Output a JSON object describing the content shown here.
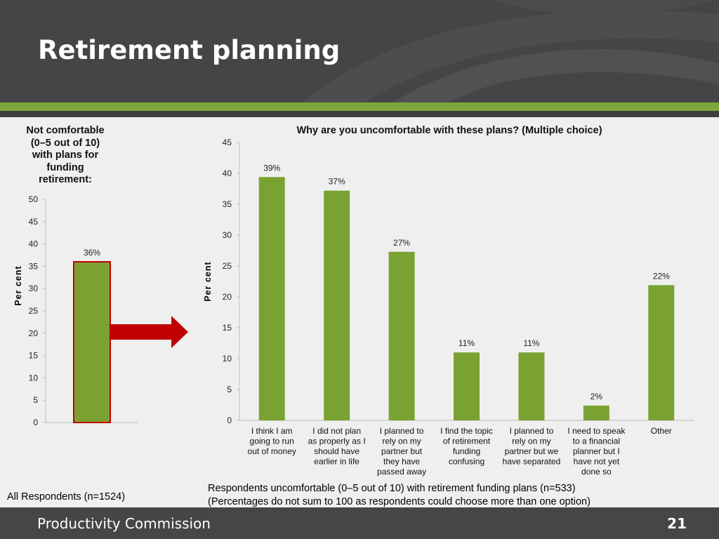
{
  "slide": {
    "title": "Retirement planning",
    "footer_org": "Productivity Commission",
    "page_number": "21"
  },
  "colors": {
    "bar": "#7aa232",
    "bar_highlight_border": "#c00000",
    "arrow": "#c00000",
    "header_bg": "#444546",
    "accent_band": "#7ea63a"
  },
  "notes": {
    "left": "All Respondents (n=1524)",
    "right_line1": "Respondents uncomfortable (0–5 out of 10) with retirement funding plans (n=533)",
    "right_line2": "(Percentages do not sum to 100 as respondents could choose more than one option)"
  },
  "chart_data": [
    {
      "type": "bar",
      "title": "Not comfortable (0–5 out of 10) with plans for funding retirement:",
      "ylabel": "Per cent",
      "xlabel": "",
      "ylim": [
        0,
        50
      ],
      "yticks": [
        "0",
        "5",
        "10",
        "15",
        "20",
        "25",
        "30",
        "35",
        "40",
        "45",
        "50"
      ],
      "categories": [
        ""
      ],
      "values": [
        36
      ],
      "data_labels": [
        "36%"
      ],
      "highlight": true,
      "grid": false
    },
    {
      "type": "bar",
      "title": "Why are you uncomfortable with these plans? (Multiple choice)",
      "ylabel": "Per cent",
      "xlabel": "",
      "ylim": [
        0,
        45
      ],
      "yticks": [
        "0",
        "5",
        "10",
        "15",
        "20",
        "25",
        "30",
        "35",
        "40",
        "45"
      ],
      "categories": [
        "I think I am going to run out of money",
        "I did not plan as properly as I should have earlier in life",
        "I planned to rely on my partner but they have passed away",
        "I find the topic of retirement funding confusing",
        "I planned to rely on my partner but we have separated",
        "I need to speak to a financial planner but I have not yet done so",
        "Other"
      ],
      "category_lines": [
        [
          "I think I am",
          "going to run",
          "out of money"
        ],
        [
          "I did not plan",
          "as properly as I",
          "should have",
          "earlier in life"
        ],
        [
          "I planned to",
          "rely on my",
          "partner but",
          "they have",
          "passed away"
        ],
        [
          "I find the topic",
          "of retirement",
          "funding",
          "confusing"
        ],
        [
          "I planned to",
          "rely on my",
          "partner but we",
          "have separated"
        ],
        [
          "I need to speak",
          "to a financial",
          "planner but I",
          "have not yet",
          "done so"
        ],
        [
          "Other"
        ]
      ],
      "values": [
        39.4,
        37.2,
        27.3,
        11.0,
        11.0,
        2.4,
        21.9
      ],
      "data_labels": [
        "39%",
        "37%",
        "27%",
        "11%",
        "11%",
        "2%",
        "22%"
      ],
      "grid": false
    }
  ]
}
